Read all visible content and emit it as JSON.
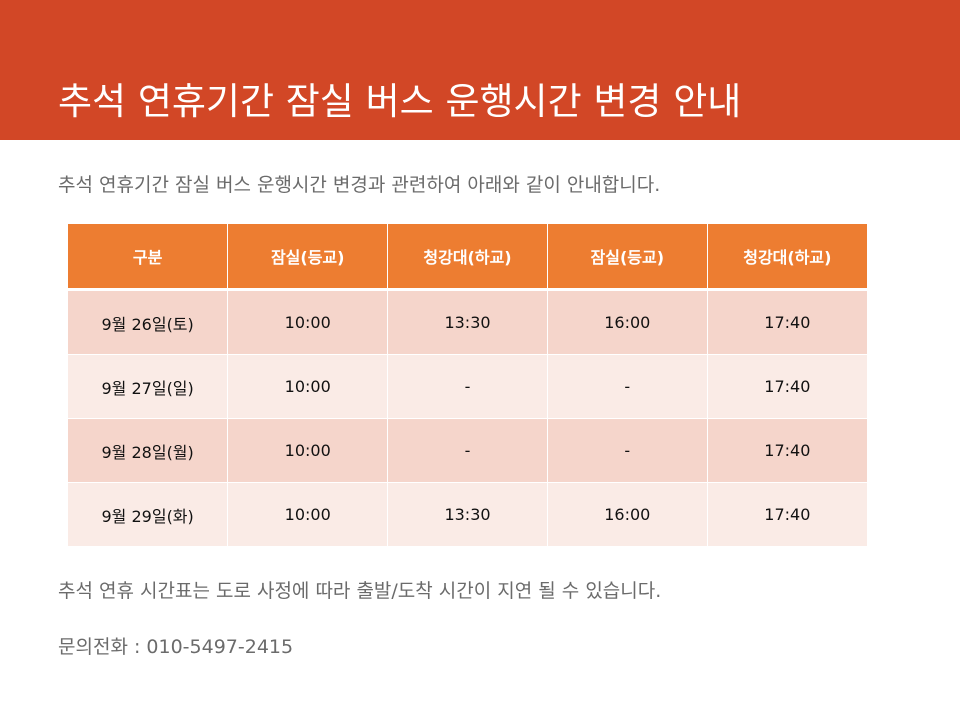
{
  "colors": {
    "header_bg": "#d24726",
    "table_header_bg": "#ed7d31",
    "row_dark": "#f5d5cb",
    "row_light": "#faebe6",
    "body_text": "#6b6b6b"
  },
  "title": "추석 연휴기간 잠실 버스 운행시간 변경 안내",
  "intro": "추석 연휴기간 잠실 버스 운행시간 변경과 관련하여 아래와 같이 안내합니다.",
  "table": {
    "headers": [
      "구분",
      "잠실(등교)",
      "청강대(하교)",
      "잠실(등교)",
      "청강대(하교)"
    ],
    "rows": [
      [
        "9월 26일(토)",
        "10:00",
        "13:30",
        "16:00",
        "17:40"
      ],
      [
        "9월 27일(일)",
        "10:00",
        "-",
        "-",
        "17:40"
      ],
      [
        "9월 28일(월)",
        "10:00",
        "-",
        "-",
        "17:40"
      ],
      [
        "9월 29일(화)",
        "10:00",
        "13:30",
        "16:00",
        "17:40"
      ]
    ]
  },
  "note": "추석 연휴 시간표는 도로 사정에 따라 출발/도착 시간이 지연 될 수 있습니다.",
  "contact": "문의전화 : 010-5497-2415"
}
